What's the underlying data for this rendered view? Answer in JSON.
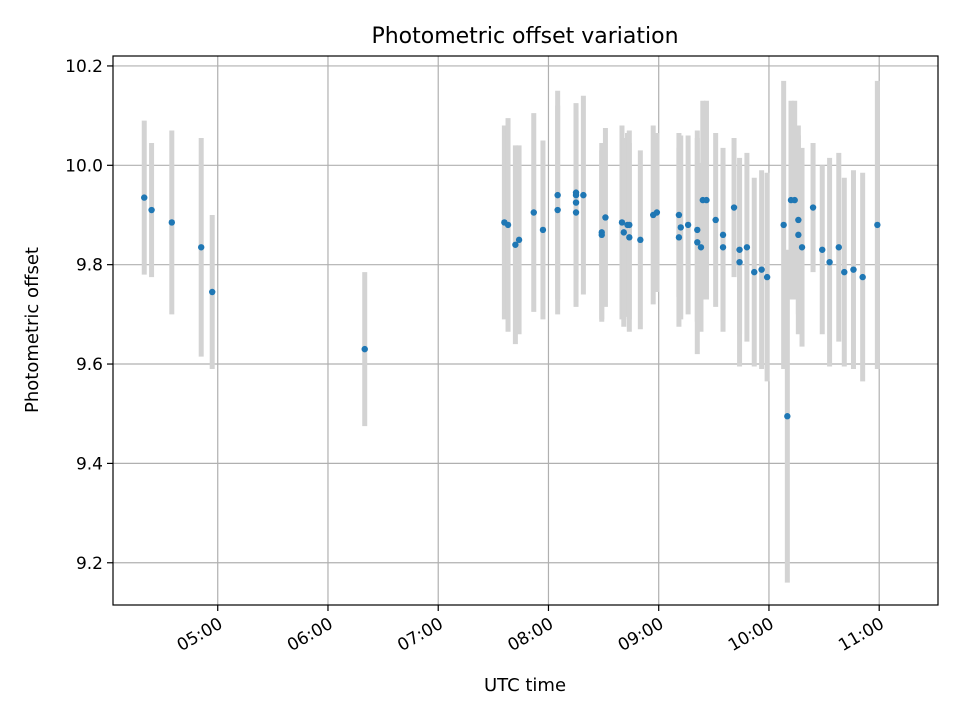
{
  "chart_data": {
    "type": "scatter",
    "title": "Photometric offset variation",
    "xlabel": "UTC time",
    "ylabel": "Photometric offset",
    "xlim": [
      "04:03",
      "11:32"
    ],
    "ylim": [
      9.115,
      10.22
    ],
    "x_ticks": [
      "05:00",
      "06:00",
      "07:00",
      "08:00",
      "09:00",
      "10:00",
      "11:00"
    ],
    "y_ticks": [
      "9.2",
      "9.4",
      "9.6",
      "9.8",
      "10.0",
      "10.2"
    ],
    "grid": true,
    "x_tick_rotation": 30,
    "colors": {
      "point": "#1f77b4",
      "errorbar": "#d3d3d3",
      "grid": "#b0b0b0"
    },
    "series": [
      {
        "x": [
          "04:20",
          "04:24",
          "04:35",
          "04:51",
          "04:57",
          "06:20",
          "07:36",
          "07:38",
          "07:42",
          "07:44",
          "07:52",
          "07:57",
          "08:05",
          "08:05",
          "08:15",
          "08:15",
          "08:15",
          "08:15",
          "08:19",
          "08:29",
          "08:29",
          "08:31",
          "08:40",
          "08:41",
          "08:43",
          "08:44",
          "08:44",
          "08:50",
          "08:57",
          "08:59",
          "09:11",
          "09:11",
          "09:12",
          "09:16",
          "09:21",
          "09:21",
          "09:23",
          "09:24",
          "09:26",
          "09:31",
          "09:35",
          "09:35",
          "09:41",
          "09:44",
          "09:44",
          "09:48",
          "09:52",
          "09:56",
          "09:59",
          "10:08",
          "10:10",
          "10:12",
          "10:14",
          "10:16",
          "10:16",
          "10:18",
          "10:24",
          "10:29",
          "10:33",
          "10:38",
          "10:41",
          "10:46",
          "10:51",
          "10:59"
        ],
        "y": [
          9.935,
          9.91,
          9.885,
          9.835,
          9.745,
          9.63,
          9.885,
          9.88,
          9.84,
          9.85,
          9.905,
          9.87,
          9.91,
          9.94,
          9.945,
          9.94,
          9.905,
          9.925,
          9.94,
          9.865,
          9.86,
          9.895,
          9.885,
          9.865,
          9.88,
          9.88,
          9.855,
          9.85,
          9.9,
          9.905,
          9.855,
          9.9,
          9.875,
          9.88,
          9.845,
          9.87,
          9.835,
          9.93,
          9.93,
          9.89,
          9.86,
          9.835,
          9.915,
          9.83,
          9.805,
          9.835,
          9.785,
          9.79,
          9.775,
          9.88,
          9.495,
          9.93,
          9.93,
          9.89,
          9.86,
          9.835,
          9.915,
          9.83,
          9.805,
          9.835,
          9.785,
          9.79,
          9.775,
          9.88
        ],
        "yerr": [
          0.155,
          0.135,
          0.185,
          0.22,
          0.155,
          0.155,
          0.195,
          0.215,
          0.2,
          0.19,
          0.2,
          0.18,
          0.21,
          0.21,
          0.18,
          0.17,
          0.19,
          0.2,
          0.2,
          0.18,
          0.17,
          0.18,
          0.195,
          0.19,
          0.185,
          0.19,
          0.19,
          0.18,
          0.18,
          0.16,
          0.18,
          0.165,
          0.185,
          0.18,
          0.225,
          0.185,
          0.17,
          0.2,
          0.2,
          0.175,
          0.175,
          0.17,
          0.14,
          0.17,
          0.21,
          0.19,
          0.19,
          0.2,
          0.21,
          0.29,
          0.335,
          0.2,
          0.2,
          0.19,
          0.2,
          0.2,
          0.13,
          0.17,
          0.21,
          0.19,
          0.19,
          0.2,
          0.21,
          0.29
        ]
      }
    ]
  }
}
